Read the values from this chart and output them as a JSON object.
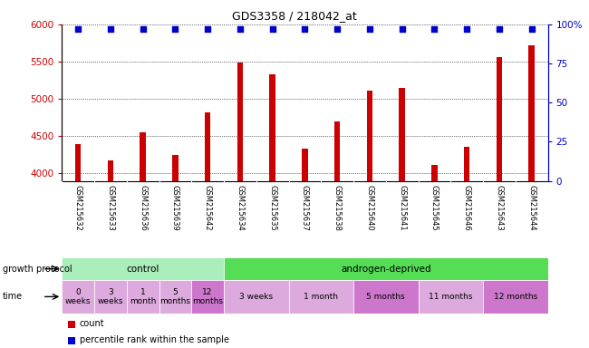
{
  "title": "GDS3358 / 218042_at",
  "samples": [
    "GSM215632",
    "GSM215633",
    "GSM215636",
    "GSM215639",
    "GSM215642",
    "GSM215634",
    "GSM215635",
    "GSM215637",
    "GSM215638",
    "GSM215640",
    "GSM215641",
    "GSM215645",
    "GSM215646",
    "GSM215643",
    "GSM215644"
  ],
  "counts": [
    4390,
    4170,
    4550,
    4250,
    4820,
    5490,
    5330,
    4330,
    4700,
    5110,
    5150,
    4120,
    4360,
    5560,
    5720
  ],
  "percentile_ranks": [
    97,
    97,
    97,
    97,
    97,
    97,
    97,
    97,
    97,
    97,
    97,
    97,
    97,
    97,
    97
  ],
  "bar_color": "#cc0000",
  "dot_color": "#0000cc",
  "ylim_left": [
    3900,
    6000
  ],
  "ylim_right": [
    0,
    100
  ],
  "yticks_left": [
    4000,
    4500,
    5000,
    5500,
    6000
  ],
  "yticks_right": [
    0,
    25,
    50,
    75,
    100
  ],
  "grid_color": "#555555",
  "background_color": "#ffffff",
  "label_bg_color": "#cccccc",
  "protocol_row": {
    "label": "growth protocol",
    "groups": [
      {
        "text": "control",
        "start": 0,
        "end": 5,
        "color": "#aaeebb"
      },
      {
        "text": "androgen-deprived",
        "start": 5,
        "end": 15,
        "color": "#55dd55"
      }
    ]
  },
  "time_row": {
    "label": "time",
    "cells": [
      {
        "text": "0\nweeks",
        "start": 0,
        "end": 1,
        "color": "#ddaadd"
      },
      {
        "text": "3\nweeks",
        "start": 1,
        "end": 2,
        "color": "#ddaadd"
      },
      {
        "text": "1\nmonth",
        "start": 2,
        "end": 3,
        "color": "#ddaadd"
      },
      {
        "text": "5\nmonths",
        "start": 3,
        "end": 4,
        "color": "#ddaadd"
      },
      {
        "text": "12\nmonths",
        "start": 4,
        "end": 5,
        "color": "#cc77cc"
      },
      {
        "text": "3 weeks",
        "start": 5,
        "end": 7,
        "color": "#ddaadd"
      },
      {
        "text": "1 month",
        "start": 7,
        "end": 9,
        "color": "#ddaadd"
      },
      {
        "text": "5 months",
        "start": 9,
        "end": 11,
        "color": "#cc77cc"
      },
      {
        "text": "11 months",
        "start": 11,
        "end": 13,
        "color": "#ddaadd"
      },
      {
        "text": "12 months",
        "start": 13,
        "end": 15,
        "color": "#cc77cc"
      }
    ]
  },
  "legend_items": [
    {
      "color": "#cc0000",
      "label": "count"
    },
    {
      "color": "#0000cc",
      "label": "percentile rank within the sample"
    }
  ]
}
